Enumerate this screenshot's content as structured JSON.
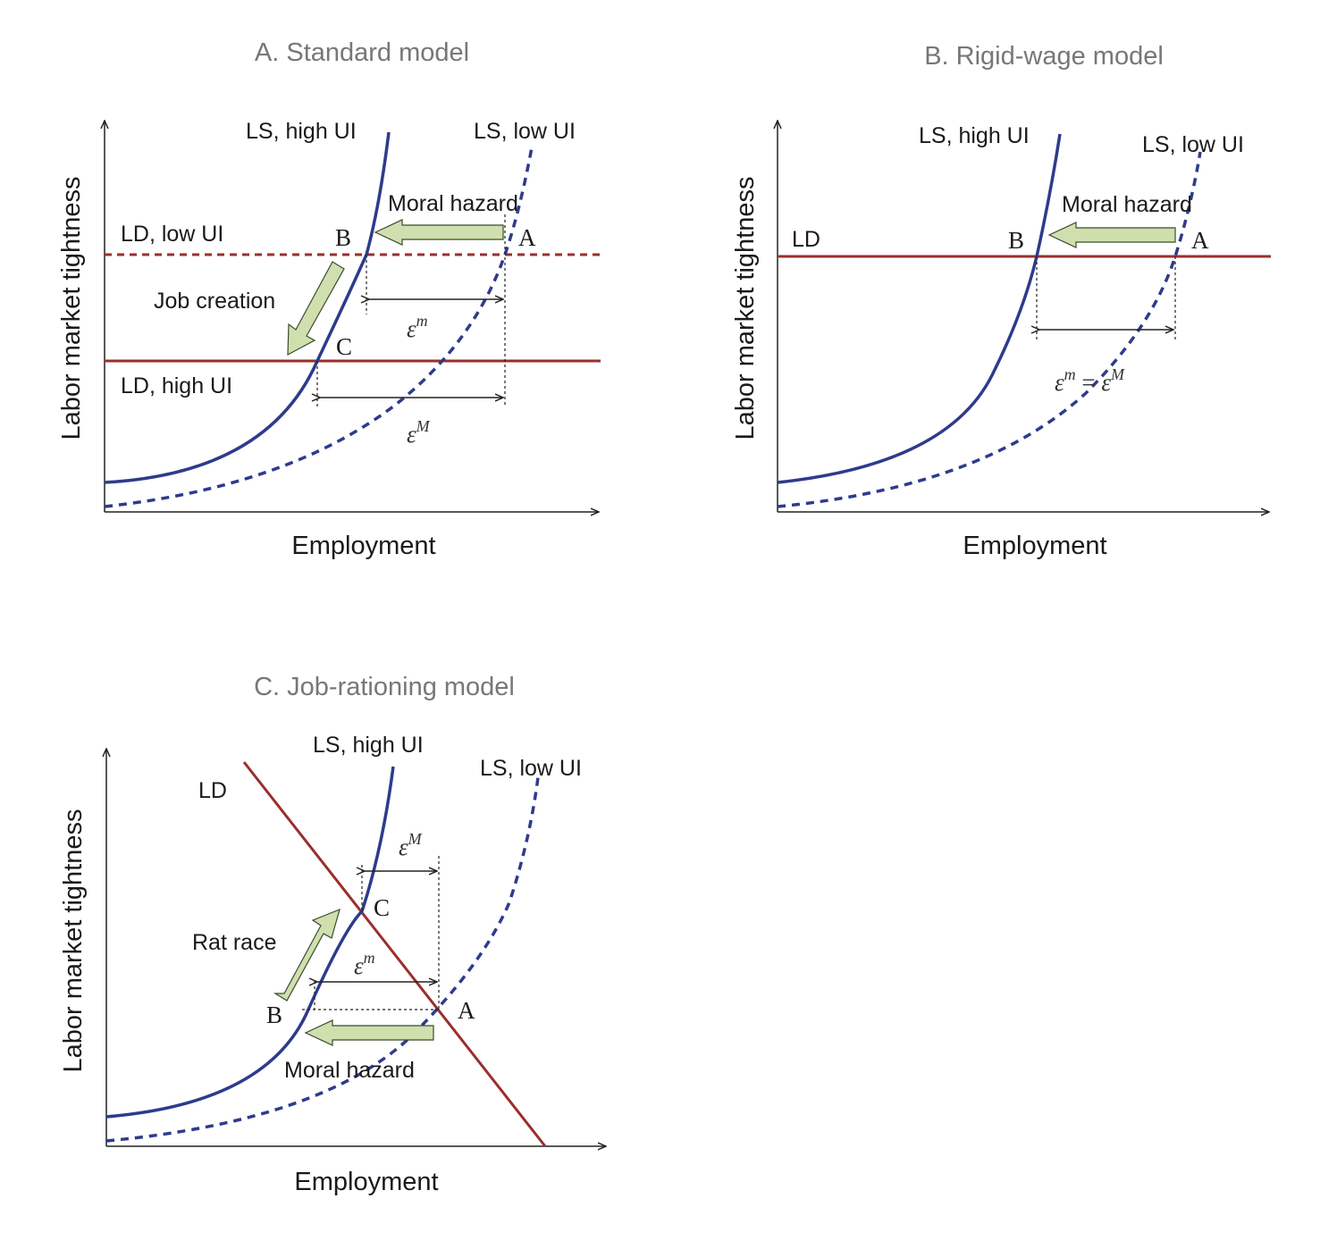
{
  "panel_a": {
    "title": "A. Standard model",
    "ls_high": "LS, high UI",
    "ls_low": "LS, low UI",
    "ld_low": "LD, low UI",
    "ld_high": "LD, high UI",
    "moral_hazard": "Moral hazard",
    "job_creation": "Job creation",
    "point_a": "A",
    "point_b": "B",
    "point_c": "C",
    "eps_small": "ε",
    "eps_small_sup": "m",
    "eps_big": "ε",
    "eps_big_sup": "M",
    "xlabel": "Employment",
    "ylabel": "Labor market tightness"
  },
  "panel_b": {
    "title": "B. Rigid-wage model",
    "ls_high": "LS,  high UI",
    "ls_low": "LS, low UI",
    "ld": "LD",
    "moral_hazard": "Moral hazard",
    "point_a": "A",
    "point_b": "B",
    "eps_eq_left": "ε",
    "eps_eq_left_sup": "m",
    "eps_eq_sign": " = ",
    "eps_eq_right": "ε",
    "eps_eq_right_sup": "M",
    "xlabel": "Employment",
    "ylabel": "Labor market tightness"
  },
  "panel_c": {
    "title": "C. Job-rationing model",
    "ls_high": "LS, high UI",
    "ls_low": "LS, low UI",
    "ld": "LD",
    "rat_race": "Rat race",
    "moral_hazard": "Moral hazard",
    "point_a": "A",
    "point_b": "B",
    "point_c": "C",
    "eps_big": "ε",
    "eps_big_sup": "M",
    "eps_small": "ε",
    "eps_small_sup": "m",
    "xlabel": "Employment",
    "ylabel": "Labor market tightness"
  },
  "colors": {
    "labor_supply": "#2e3b8c",
    "labor_demand": "#9a2f2c",
    "arrow": "#cfe0ae",
    "title": "#777777"
  }
}
